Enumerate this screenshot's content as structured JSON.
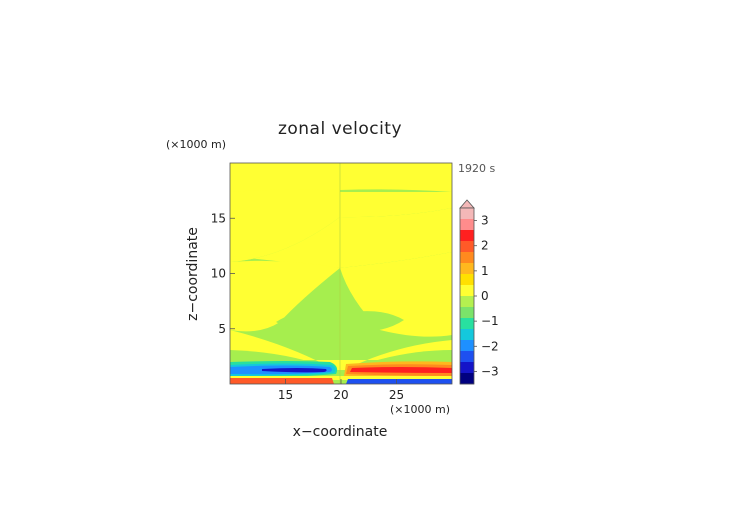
{
  "chart_data": {
    "type": "heatmap",
    "title": "zonal velocity",
    "xlabel": "x−coordinate",
    "ylabel": "z−coordinate",
    "x_unit": "(×1000 m)",
    "y_unit": "(×1000 m)",
    "time_label": "1920 s",
    "xlim": [
      10,
      30
    ],
    "ylim": [
      0,
      20
    ],
    "x_ticks": [
      15,
      20,
      25
    ],
    "y_ticks": [
      5,
      10,
      15
    ],
    "colorbar": {
      "ticks": [
        "3",
        "2",
        "1",
        "0",
        "−1",
        "−2",
        "−3"
      ],
      "tick_values": [
        3,
        2,
        1,
        0,
        -1,
        -2,
        -3
      ],
      "range": [
        -3.5,
        3.5
      ],
      "colors_top_to_bottom": [
        "#f4b8b8",
        "#ff8c8c",
        "#ff2020",
        "#ff5a28",
        "#ff8a1e",
        "#ffb81e",
        "#ffe000",
        "#ffff33",
        "#b4f050",
        "#7be36a",
        "#28e0a0",
        "#14c8dc",
        "#1e90ff",
        "#1e50f0",
        "#1414c8",
        "#000080"
      ]
    },
    "regions_note": "green: −0.5 to 0; yellow: 0 to 0.5",
    "colors": {
      "green": "#a6ee4e",
      "yellow": "#ffff33"
    }
  }
}
